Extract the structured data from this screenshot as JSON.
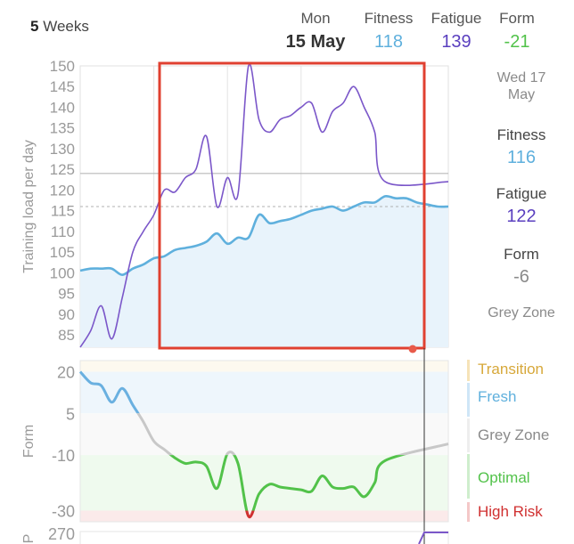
{
  "header": {
    "range_value": "5",
    "range_unit": "Weeks",
    "day": "Mon",
    "date": "15 May",
    "fitness_label": "Fitness",
    "fitness_value": "118",
    "fatigue_label": "Fatigue",
    "fatigue_value": "139",
    "form_label": "Form",
    "form_value": "-21"
  },
  "side": {
    "day": "Wed 17",
    "month": "May",
    "fitness_label": "Fitness",
    "fitness_value": "116",
    "fatigue_label": "Fatigue",
    "fatigue_value": "122",
    "form_label": "Form",
    "form_value": "-6",
    "zone": "Grey Zone"
  },
  "zones": {
    "transition": "Transition",
    "fresh": "Fresh",
    "grey": "Grey Zone",
    "optimal": "Optimal",
    "high_risk": "High Risk"
  },
  "colors": {
    "fitness": "#5fb0dd",
    "fatigue": "#7b57c9",
    "form_positive": "#6ab0e0",
    "form_grey": "#c8c8c8",
    "form_optimal": "#52c24a",
    "form_risk": "#d03030",
    "transition": "#e0b040",
    "selection": "#e04030"
  },
  "chart_data": [
    {
      "type": "line",
      "ylabel": "Training load per day",
      "ylim": [
        82,
        150
      ],
      "yticks": [
        85,
        90,
        95,
        100,
        105,
        110,
        115,
        120,
        125,
        130,
        135,
        140,
        145,
        150
      ],
      "xlim": [
        0,
        35
      ],
      "series": [
        {
          "name": "Fitness",
          "x": [
            0,
            1,
            2,
            3,
            4,
            5,
            6,
            7,
            8,
            9,
            10,
            11,
            12,
            13,
            14,
            15,
            16,
            17,
            18,
            19,
            20,
            21,
            22,
            23,
            24,
            25,
            26,
            27,
            28,
            29,
            30,
            31,
            32,
            33,
            34,
            35
          ],
          "y": [
            100.5,
            101,
            101,
            101,
            99.5,
            101,
            102,
            103.5,
            104,
            105.5,
            106,
            106.5,
            107.5,
            109.5,
            107,
            108.5,
            108.5,
            114,
            112,
            112.5,
            113,
            114,
            115,
            115.5,
            116,
            115,
            116,
            117,
            117,
            118.5,
            118,
            118,
            117,
            116.5,
            116,
            116
          ]
        },
        {
          "name": "Fatigue",
          "x": [
            0,
            1,
            2,
            3,
            4,
            5,
            6,
            7,
            8,
            9,
            10,
            11,
            12,
            13,
            14,
            15,
            16,
            17,
            18,
            19,
            20,
            21,
            22,
            23,
            24,
            25,
            26,
            27,
            28,
            29,
            30,
            31,
            32,
            33,
            34,
            35
          ],
          "y": [
            82,
            86,
            92,
            84,
            94,
            105,
            110,
            114,
            120,
            119.5,
            123,
            125,
            133,
            116,
            123,
            119,
            150,
            137,
            134,
            137,
            138,
            140,
            141,
            134,
            139,
            141,
            145,
            140,
            134,
            122,
            122,
            122,
            122,
            122,
            122,
            122
          ]
        }
      ]
    },
    {
      "type": "line",
      "ylabel": "Form",
      "ylim": [
        -34,
        24
      ],
      "yticks": [
        20,
        5,
        -10,
        -30
      ],
      "series": [
        {
          "name": "Form",
          "x": [
            0,
            1,
            2,
            3,
            4,
            5,
            6,
            7,
            8,
            9,
            10,
            11,
            12,
            13,
            14,
            15,
            16,
            17,
            18,
            19,
            20,
            21,
            22,
            23,
            24,
            25,
            26,
            27,
            28,
            29,
            30,
            31,
            32,
            33,
            34,
            35
          ],
          "y": [
            20,
            16,
            15,
            9,
            14,
            8,
            2,
            -5,
            -8,
            -11,
            -13,
            -12.5,
            -14,
            -22,
            -9.5,
            -13,
            -32,
            -24,
            -20.5,
            -21.5,
            -22,
            -22.5,
            -23,
            -17.5,
            -21.5,
            -22,
            -21.5,
            -25,
            -20,
            -12,
            -6,
            -6,
            -6,
            -6,
            -6,
            -6
          ]
        }
      ],
      "zones": [
        {
          "name": "Transition",
          "from": 25,
          "to": 20
        },
        {
          "name": "Fresh",
          "from": 20,
          "to": 5
        },
        {
          "name": "Grey Zone",
          "from": 5,
          "to": -10
        },
        {
          "name": "Optimal",
          "from": -10,
          "to": -30
        },
        {
          "name": "High Risk",
          "from": -30,
          "to": -34
        }
      ]
    }
  ],
  "bottom_axis": {
    "label": "P",
    "top_tick": "270"
  }
}
